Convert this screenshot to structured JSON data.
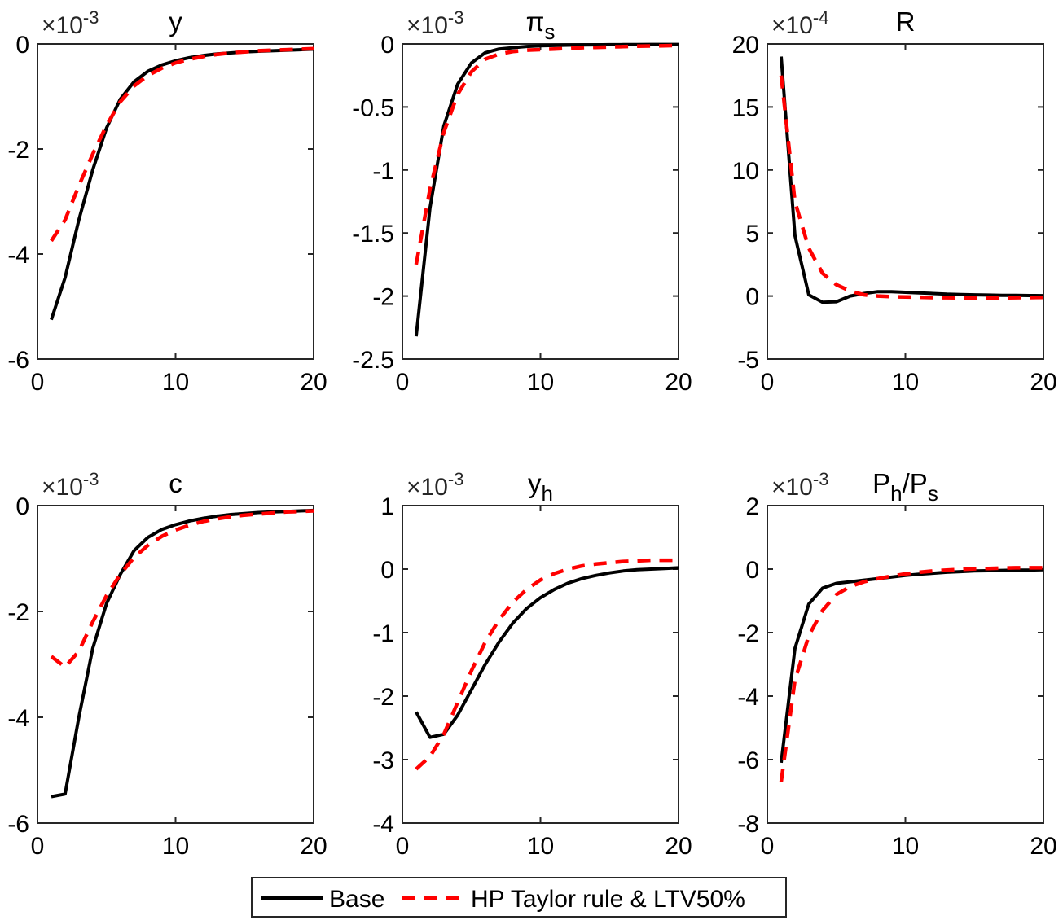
{
  "legend": {
    "entries": [
      {
        "label": "Base",
        "color": "#000000",
        "style": "solid"
      },
      {
        "label": "HP Taylor rule & LTV50%",
        "color": "#ff0000",
        "style": "dashed"
      }
    ]
  },
  "chart_data": [
    {
      "type": "line",
      "title": "y",
      "multiplier": "×10^-3",
      "multiplier_base": "×10",
      "multiplier_exp": "-3",
      "xlim": [
        0,
        20
      ],
      "ylim": [
        -6,
        0
      ],
      "xticks": [
        0,
        10,
        20
      ],
      "yticks": [
        -6,
        -4,
        -2,
        0
      ],
      "x": [
        1,
        2,
        3,
        4,
        5,
        6,
        7,
        8,
        9,
        10,
        11,
        12,
        13,
        14,
        15,
        16,
        17,
        18,
        19,
        20
      ],
      "series": [
        {
          "name": "Base",
          "values": [
            -5.25,
            -4.45,
            -3.35,
            -2.4,
            -1.6,
            -1.05,
            -0.72,
            -0.52,
            -0.4,
            -0.32,
            -0.26,
            -0.22,
            -0.19,
            -0.17,
            -0.15,
            -0.14,
            -0.13,
            -0.12,
            -0.11,
            -0.1
          ]
        },
        {
          "name": "HP Taylor rule & LTV50%",
          "values": [
            -3.75,
            -3.35,
            -2.7,
            -2.1,
            -1.55,
            -1.1,
            -0.8,
            -0.6,
            -0.46,
            -0.36,
            -0.29,
            -0.24,
            -0.2,
            -0.17,
            -0.15,
            -0.13,
            -0.12,
            -0.11,
            -0.1,
            -0.09
          ]
        }
      ]
    },
    {
      "type": "line",
      "title": "πs",
      "title_main": "π",
      "title_sub": "s",
      "multiplier": "×10^-3",
      "multiplier_base": "×10",
      "multiplier_exp": "-3",
      "xlim": [
        0,
        20
      ],
      "ylim": [
        -2.5,
        0
      ],
      "xticks": [
        0,
        10,
        20
      ],
      "yticks": [
        -2.5,
        -2,
        -1.5,
        -1,
        -0.5,
        0
      ],
      "x": [
        1,
        2,
        3,
        4,
        5,
        6,
        7,
        8,
        9,
        10,
        11,
        12,
        13,
        14,
        15,
        16,
        17,
        18,
        19,
        20
      ],
      "series": [
        {
          "name": "Base",
          "values": [
            -2.32,
            -1.3,
            -0.65,
            -0.32,
            -0.15,
            -0.07,
            -0.04,
            -0.03,
            -0.02,
            -0.015,
            -0.012,
            -0.01,
            -0.008,
            -0.007,
            -0.006,
            -0.005,
            -0.005,
            -0.004,
            -0.004,
            -0.004
          ]
        },
        {
          "name": "HP Taylor rule & LTV50%",
          "values": [
            -1.75,
            -1.15,
            -0.7,
            -0.4,
            -0.22,
            -0.12,
            -0.08,
            -0.06,
            -0.05,
            -0.045,
            -0.04,
            -0.035,
            -0.03,
            -0.027,
            -0.024,
            -0.021,
            -0.018,
            -0.016,
            -0.014,
            -0.012
          ]
        }
      ]
    },
    {
      "type": "line",
      "title": "R",
      "multiplier": "×10^-4",
      "multiplier_base": "×10",
      "multiplier_exp": "-4",
      "xlim": [
        0,
        20
      ],
      "ylim": [
        -5,
        20
      ],
      "xticks": [
        0,
        10,
        20
      ],
      "yticks": [
        -5,
        0,
        5,
        10,
        15,
        20
      ],
      "x": [
        1,
        2,
        3,
        4,
        5,
        6,
        7,
        8,
        9,
        10,
        11,
        12,
        13,
        14,
        15,
        16,
        17,
        18,
        19,
        20
      ],
      "series": [
        {
          "name": "Base",
          "values": [
            19.0,
            4.8,
            0.1,
            -0.5,
            -0.45,
            0.0,
            0.2,
            0.35,
            0.35,
            0.3,
            0.25,
            0.2,
            0.15,
            0.12,
            0.1,
            0.08,
            0.06,
            0.05,
            0.04,
            0.03
          ]
        },
        {
          "name": "HP Taylor rule & LTV50%",
          "values": [
            17.5,
            7.5,
            3.8,
            1.8,
            0.9,
            0.4,
            0.1,
            0.0,
            -0.05,
            -0.08,
            -0.1,
            -0.12,
            -0.13,
            -0.14,
            -0.14,
            -0.14,
            -0.14,
            -0.13,
            -0.12,
            -0.11
          ]
        }
      ]
    },
    {
      "type": "line",
      "title": "c",
      "multiplier": "×10^-3",
      "multiplier_base": "×10",
      "multiplier_exp": "-3",
      "xlim": [
        0,
        20
      ],
      "ylim": [
        -6,
        0
      ],
      "xticks": [
        0,
        10,
        20
      ],
      "yticks": [
        -6,
        -4,
        -2,
        0
      ],
      "x": [
        1,
        2,
        3,
        4,
        5,
        6,
        7,
        8,
        9,
        10,
        11,
        12,
        13,
        14,
        15,
        16,
        17,
        18,
        19,
        20
      ],
      "series": [
        {
          "name": "Base",
          "values": [
            -5.5,
            -5.45,
            -4.0,
            -2.7,
            -1.85,
            -1.3,
            -0.85,
            -0.6,
            -0.45,
            -0.36,
            -0.29,
            -0.24,
            -0.2,
            -0.17,
            -0.15,
            -0.13,
            -0.12,
            -0.11,
            -0.1,
            -0.09
          ]
        },
        {
          "name": "HP Taylor rule & LTV50%",
          "values": [
            -2.85,
            -3.05,
            -2.75,
            -2.2,
            -1.7,
            -1.3,
            -0.98,
            -0.75,
            -0.58,
            -0.46,
            -0.37,
            -0.3,
            -0.25,
            -0.21,
            -0.18,
            -0.16,
            -0.14,
            -0.12,
            -0.11,
            -0.1
          ]
        }
      ]
    },
    {
      "type": "line",
      "title": "yh",
      "title_main": "y",
      "title_sub": "h",
      "multiplier": "×10^-3",
      "multiplier_base": "×10",
      "multiplier_exp": "-3",
      "xlim": [
        0,
        20
      ],
      "ylim": [
        -4,
        1
      ],
      "xticks": [
        0,
        10,
        20
      ],
      "yticks": [
        -4,
        -3,
        -2,
        -1,
        0,
        1
      ],
      "x": [
        1,
        2,
        3,
        4,
        5,
        6,
        7,
        8,
        9,
        10,
        11,
        12,
        13,
        14,
        15,
        16,
        17,
        18,
        19,
        20
      ],
      "series": [
        {
          "name": "Base",
          "values": [
            -2.25,
            -2.65,
            -2.6,
            -2.3,
            -1.9,
            -1.5,
            -1.15,
            -0.85,
            -0.62,
            -0.45,
            -0.32,
            -0.22,
            -0.15,
            -0.1,
            -0.06,
            -0.03,
            -0.01,
            0.0,
            0.01,
            0.02
          ]
        },
        {
          "name": "HP Taylor rule & LTV50%",
          "values": [
            -3.15,
            -2.95,
            -2.6,
            -2.1,
            -1.6,
            -1.15,
            -0.8,
            -0.52,
            -0.32,
            -0.17,
            -0.07,
            0.0,
            0.05,
            0.08,
            0.1,
            0.12,
            0.13,
            0.14,
            0.14,
            0.14
          ]
        }
      ]
    },
    {
      "type": "line",
      "title": "Ph/Ps",
      "title_parts": [
        "P",
        "h",
        "/P",
        "s"
      ],
      "multiplier": "×10^-3",
      "multiplier_base": "×10",
      "multiplier_exp": "-3",
      "xlim": [
        0,
        20
      ],
      "ylim": [
        -8,
        2
      ],
      "xticks": [
        0,
        10,
        20
      ],
      "yticks": [
        -8,
        -6,
        -4,
        -2,
        0,
        2
      ],
      "x": [
        1,
        2,
        3,
        4,
        5,
        6,
        7,
        8,
        9,
        10,
        11,
        12,
        13,
        14,
        15,
        16,
        17,
        18,
        19,
        20
      ],
      "series": [
        {
          "name": "Base",
          "values": [
            -6.1,
            -2.5,
            -1.1,
            -0.6,
            -0.45,
            -0.4,
            -0.35,
            -0.3,
            -0.25,
            -0.2,
            -0.16,
            -0.13,
            -0.1,
            -0.08,
            -0.06,
            -0.05,
            -0.04,
            -0.03,
            -0.03,
            -0.02
          ]
        },
        {
          "name": "HP Taylor rule & LTV50%",
          "values": [
            -6.7,
            -3.5,
            -2.1,
            -1.3,
            -0.8,
            -0.55,
            -0.4,
            -0.3,
            -0.22,
            -0.15,
            -0.1,
            -0.06,
            -0.03,
            -0.01,
            0.01,
            0.02,
            0.03,
            0.04,
            0.04,
            0.04
          ]
        }
      ]
    }
  ]
}
